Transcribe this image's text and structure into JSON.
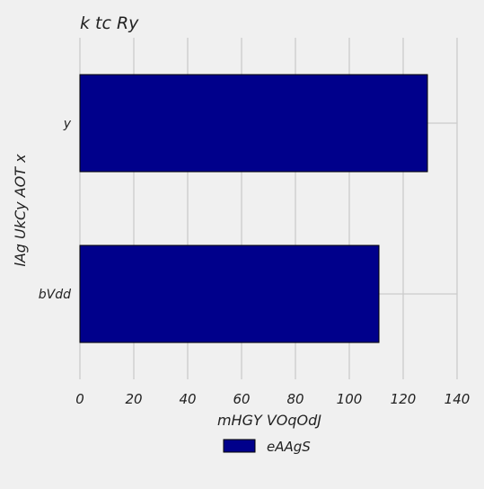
{
  "chart_data": {
    "type": "bar",
    "orientation": "horizontal",
    "title": "k  tc Ry",
    "xlabel": "mHGY  VOqOdJ",
    "ylabel": "lAg UkCy AOT x",
    "categories": [
      "y",
      "bVdd"
    ],
    "series": [
      {
        "name": "eAAgS",
        "values": [
          129,
          111
        ],
        "color": "#00008b"
      }
    ],
    "xlim": [
      0,
      140
    ],
    "xticks": [
      "0",
      "20",
      "40",
      "60",
      "80",
      "100",
      "120",
      "140"
    ],
    "grid": true,
    "legend_position": "bottom-center",
    "background_color": "#f0f0f0",
    "grid_color": "#cbcbcb"
  }
}
